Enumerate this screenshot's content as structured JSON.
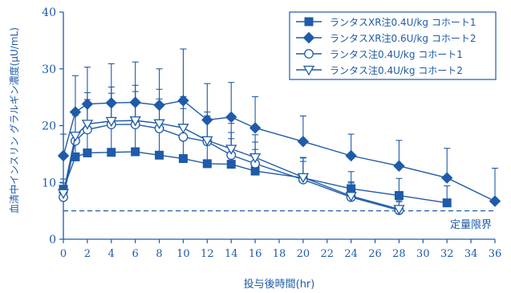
{
  "chart_data": {
    "type": "line",
    "title": "",
    "xlabel": "投与後時間(hr)",
    "ylabel": "血清中インスリン グラルギン濃度(μU/mL)",
    "xlim": [
      0,
      36
    ],
    "ylim": [
      0,
      40
    ],
    "xticks": [
      0,
      2,
      4,
      6,
      8,
      10,
      12,
      14,
      16,
      18,
      20,
      22,
      24,
      26,
      28,
      30,
      32,
      34,
      36
    ],
    "yticks": [
      0,
      10,
      20,
      30,
      40
    ],
    "grid": false,
    "legend_position": "top-right",
    "series": [
      {
        "name": "ランタスXR注0.4U/kg コホート1",
        "marker": "square-filled",
        "x": [
          0,
          1,
          2,
          4,
          6,
          8,
          10,
          12,
          14,
          16,
          20,
          24,
          28,
          32
        ],
        "y": [
          8.8,
          14.5,
          15.2,
          15.3,
          15.4,
          14.8,
          14.2,
          13.3,
          13.2,
          12.0,
          10.8,
          8.9,
          7.7,
          6.4
        ],
        "err": [
          1.8,
          3.0,
          5.0,
          5.5,
          5.8,
          5.2,
          5.5,
          4.5,
          4.5,
          3.8,
          3.5,
          3.0,
          3.0,
          3.0
        ]
      },
      {
        "name": "ランタスXR注0.6U/kg コホート2",
        "marker": "diamond-filled",
        "x": [
          0,
          1,
          2,
          4,
          6,
          8,
          10,
          12,
          14,
          16,
          20,
          24,
          28,
          32,
          36
        ],
        "y": [
          14.7,
          22.4,
          23.8,
          24.0,
          24.1,
          23.6,
          24.4,
          21.0,
          21.5,
          19.6,
          17.2,
          14.7,
          12.9,
          10.8,
          6.7
        ],
        "err": [
          3.8,
          6.4,
          6.5,
          6.9,
          7.1,
          6.4,
          9.1,
          6.4,
          6.1,
          5.5,
          4.5,
          3.8,
          4.5,
          5.2,
          5.8
        ]
      },
      {
        "name": "ランタス注0.4U/kg コホート1",
        "marker": "circle-open",
        "x": [
          0,
          1,
          2,
          4,
          6,
          8,
          10,
          12,
          14,
          16,
          20,
          24,
          28
        ],
        "y": [
          7.4,
          17.3,
          19.3,
          20.2,
          20.2,
          19.5,
          18.0,
          17.2,
          14.8,
          13.3,
          10.5,
          7.4,
          5.1
        ],
        "err": [
          1.8,
          4.5,
          5.3,
          5.5,
          5.8,
          5.2,
          5.0,
          4.5,
          4.0,
          3.8,
          3.2,
          2.5,
          1.5
        ]
      },
      {
        "name": "ランタス注0.4U/kg コホート2",
        "marker": "triangle-down-open",
        "x": [
          0,
          1,
          2,
          4,
          6,
          8,
          10,
          12,
          14,
          16,
          20,
          24,
          28
        ],
        "y": [
          8.1,
          18.2,
          20.3,
          20.8,
          20.9,
          20.4,
          19.6,
          17.4,
          15.9,
          14.4,
          10.9,
          7.6,
          5.3
        ],
        "err": [
          1.8,
          4.5,
          5.5,
          6.0,
          6.2,
          6.0,
          5.5,
          5.0,
          4.5,
          4.0,
          3.5,
          2.5,
          1.5
        ]
      }
    ],
    "reference_line": {
      "y": 5,
      "label": "定量限界",
      "style": "dashed"
    }
  },
  "colors": {
    "primary": "#1f5ba8",
    "background": "#ffffff"
  }
}
